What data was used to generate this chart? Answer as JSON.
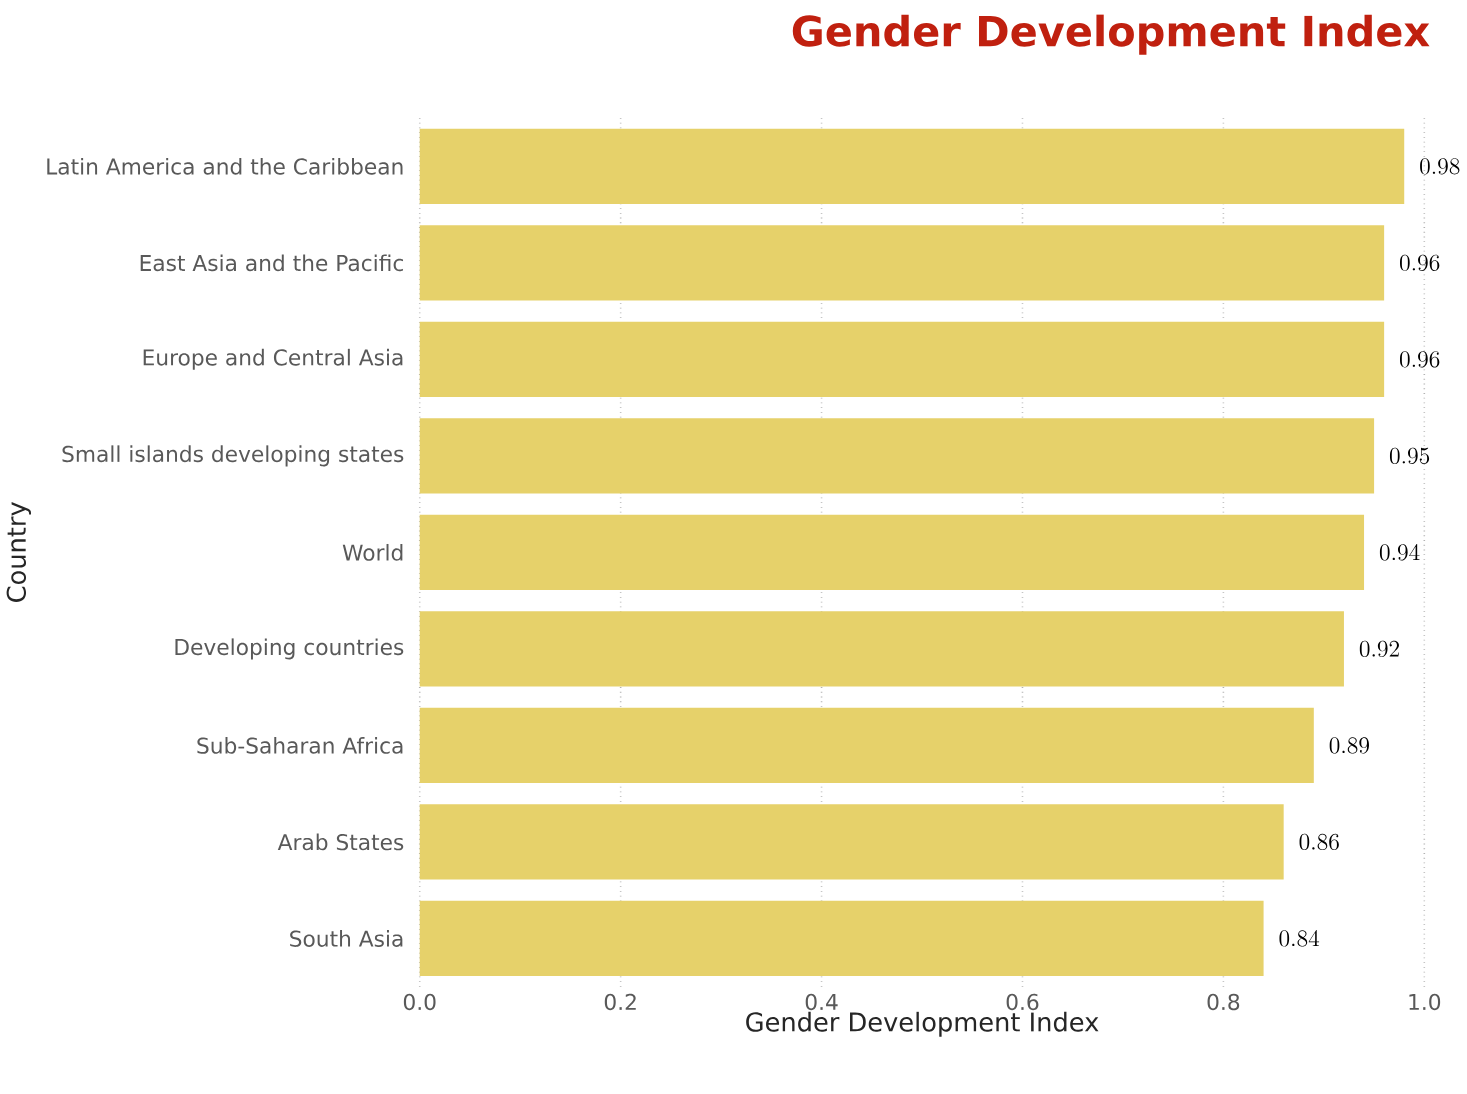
{
  "chart_data": {
    "type": "bar",
    "orientation": "horizontal",
    "title": "Gender Development Index",
    "xlabel": "Gender Development Index",
    "ylabel": "Country",
    "categories": [
      "Latin America and the Caribbean",
      "East Asia and the Pacific",
      "Europe and Central Asia",
      "Small islands developing states",
      "World",
      "Developing countries",
      "Sub-Saharan Africa",
      "Arab States",
      "South Asia"
    ],
    "values": [
      0.98,
      0.96,
      0.96,
      0.95,
      0.94,
      0.92,
      0.89,
      0.86,
      0.84
    ],
    "color": "#e6d16a",
    "xlim": [
      0,
      1.0
    ],
    "xticks": [
      {
        "value": 0,
        "label": "0.0"
      },
      0.2,
      0.4,
      0.6,
      0.8,
      {
        "value": 1.0,
        "label": "1.0"
      }
    ],
    "grid": "x",
    "data_labels": true
  }
}
